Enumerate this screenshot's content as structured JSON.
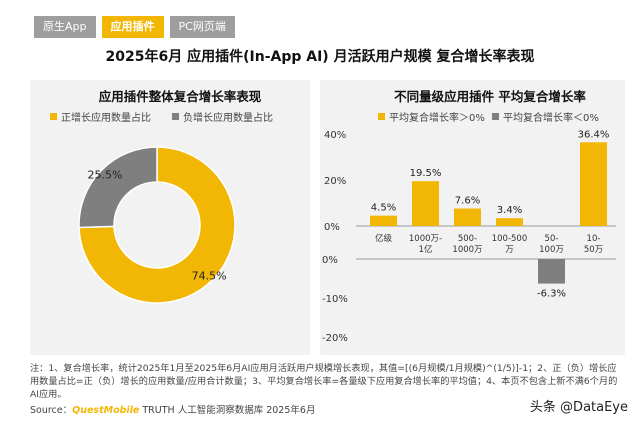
{
  "tabs": [
    {
      "label": "原生App",
      "active": false
    },
    {
      "label": "应用插件",
      "active": true
    },
    {
      "label": "PC网页端",
      "active": false
    }
  ],
  "main_title": "2025年6月 应用插件(In-App AI) 月活跃用户规模 复合增长率表现",
  "left_panel": {
    "title": "应用插件整体复合增长率表现"
  },
  "right_panel": {
    "title": "不同量级应用插件 平均复合增长率"
  },
  "notes": "注：1、复合增长率，统计2025年1月至2025年6月AI应用月活跃用户规模增长表现，其值=[(6月规模/1月规模)^(1/5)]-1；2、正（负）增长应用数量占比=正（负）增长的应用数量/应用合计数量；3、平均复合增长率=各量级下应用复合增长率的平均值；4、本页不包含上新不满6个月的AI应用。",
  "source": {
    "prefix": "Source：",
    "brand": "QuestMobile",
    "suffix": " TRUTH 人工智能洞察数据库 2025年6月"
  },
  "watermark": "头条 @DataEye",
  "colors": {
    "accent": "#f2b705",
    "negative": "#7f7f7f",
    "panel": "#f2f2f2"
  },
  "chart_data": [
    {
      "type": "pie",
      "title": "应用插件整体复合增长率表现",
      "donut": true,
      "labels": [
        "正增长应用数量占比",
        "负增长应用数量占比"
      ],
      "values": [
        74.5,
        25.5
      ],
      "value_labels": [
        "74.5%",
        "25.5%"
      ],
      "colors": [
        "#f2b705",
        "#7f7f7f"
      ]
    },
    {
      "type": "bar",
      "title": "不同量级应用插件 平均复合增长率",
      "categories": [
        "亿级",
        "1000万-1亿",
        "500-1000万",
        "100-500万",
        "50-100万",
        "10-50万"
      ],
      "category_lines": [
        [
          "亿级"
        ],
        [
          "1000万-",
          "1亿"
        ],
        [
          "500-",
          "1000万"
        ],
        [
          "100-500",
          "万"
        ],
        [
          "50-",
          "100万"
        ],
        [
          "10-",
          "50万"
        ]
      ],
      "values": [
        4.5,
        19.5,
        7.6,
        3.4,
        -6.3,
        36.4
      ],
      "value_labels": [
        "4.5%",
        "19.5%",
        "7.6%",
        "3.4%",
        "-6.3%",
        "36.4%"
      ],
      "legend": [
        "平均复合增长率＞0%",
        "平均复合增长率＜0%"
      ],
      "positive_ticks": [
        "40%",
        "20%",
        "0%"
      ],
      "negative_ticks": [
        "0%",
        "-10%",
        "-20%"
      ],
      "ylim_pos": [
        0,
        40
      ],
      "ylim_neg": [
        -20,
        0
      ]
    }
  ]
}
